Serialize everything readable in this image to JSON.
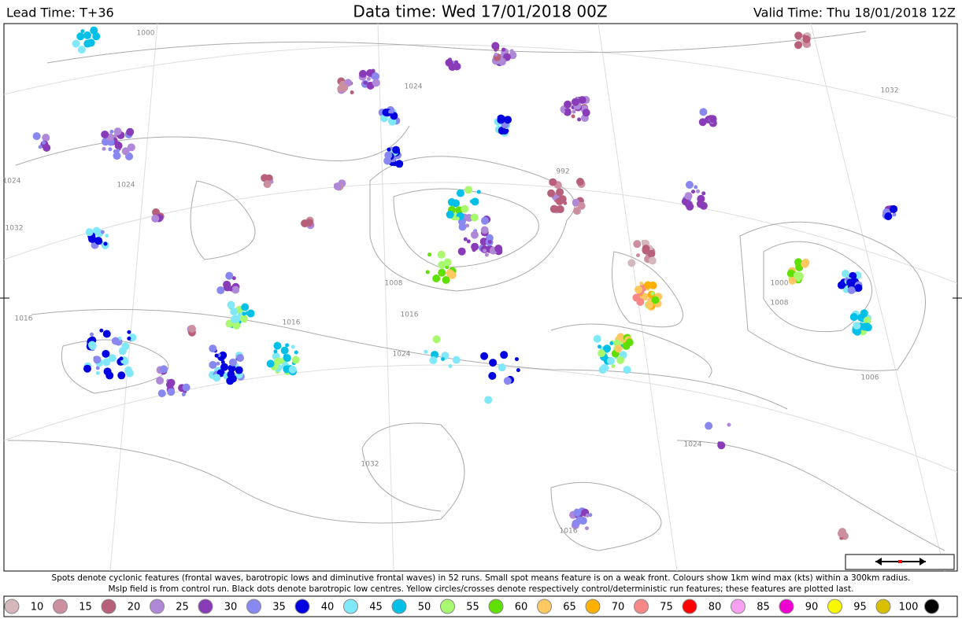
{
  "header": {
    "lead_time": "Lead Time: T+36",
    "data_time": "Data time:  Wed 17/01/2018 00Z",
    "valid_time": "Valid Time: Thu 18/01/2018 12Z"
  },
  "map": {
    "isobar_labels": [
      "1000",
      "1024",
      "1032",
      "992",
      "1008",
      "1016",
      "1024",
      "1016",
      "1006",
      "1024",
      "1032",
      "1024",
      "1016",
      "1008",
      "1000",
      "1024",
      "1016",
      "1032"
    ]
  },
  "caption": [
    "Spots denote cyclonic features (frontal waves, barotropic lows and diminutive frontal waves) in 52 runs. Small spot means feature is on a weak front. Colours show 1km wind max (kts) within a 300km radius.",
    "Mslp field is from control run. Black dots denote barotropic low centres. Yellow circles/crosses denote respectively control/deterministic run features; these features are plotted last."
  ],
  "legend": [
    {
      "value": 10,
      "color": "#d4b8bc"
    },
    {
      "value": 15,
      "color": "#cc8f9f"
    },
    {
      "value": 20,
      "color": "#b8607a"
    },
    {
      "value": 25,
      "color": "#b088d8"
    },
    {
      "value": 30,
      "color": "#8a3cb8"
    },
    {
      "value": 35,
      "color": "#8888f0"
    },
    {
      "value": 40,
      "color": "#0000e0"
    },
    {
      "value": 45,
      "color": "#80e8f8"
    },
    {
      "value": 50,
      "color": "#00c0e8"
    },
    {
      "value": 55,
      "color": "#a8f870"
    },
    {
      "value": 60,
      "color": "#60e000"
    },
    {
      "value": 65,
      "color": "#ffc860"
    },
    {
      "value": 70,
      "color": "#ffb000"
    },
    {
      "value": 75,
      "color": "#f88888"
    },
    {
      "value": 80,
      "color": "#ff0000"
    },
    {
      "value": 85,
      "color": "#f8a0f0"
    },
    {
      "value": 90,
      "color": "#f000d0"
    },
    {
      "value": 95,
      "color": "#f8f800"
    },
    {
      "value": 100,
      "color": "#d8c000"
    },
    {
      "value": null,
      "color": "#000000"
    }
  ]
}
